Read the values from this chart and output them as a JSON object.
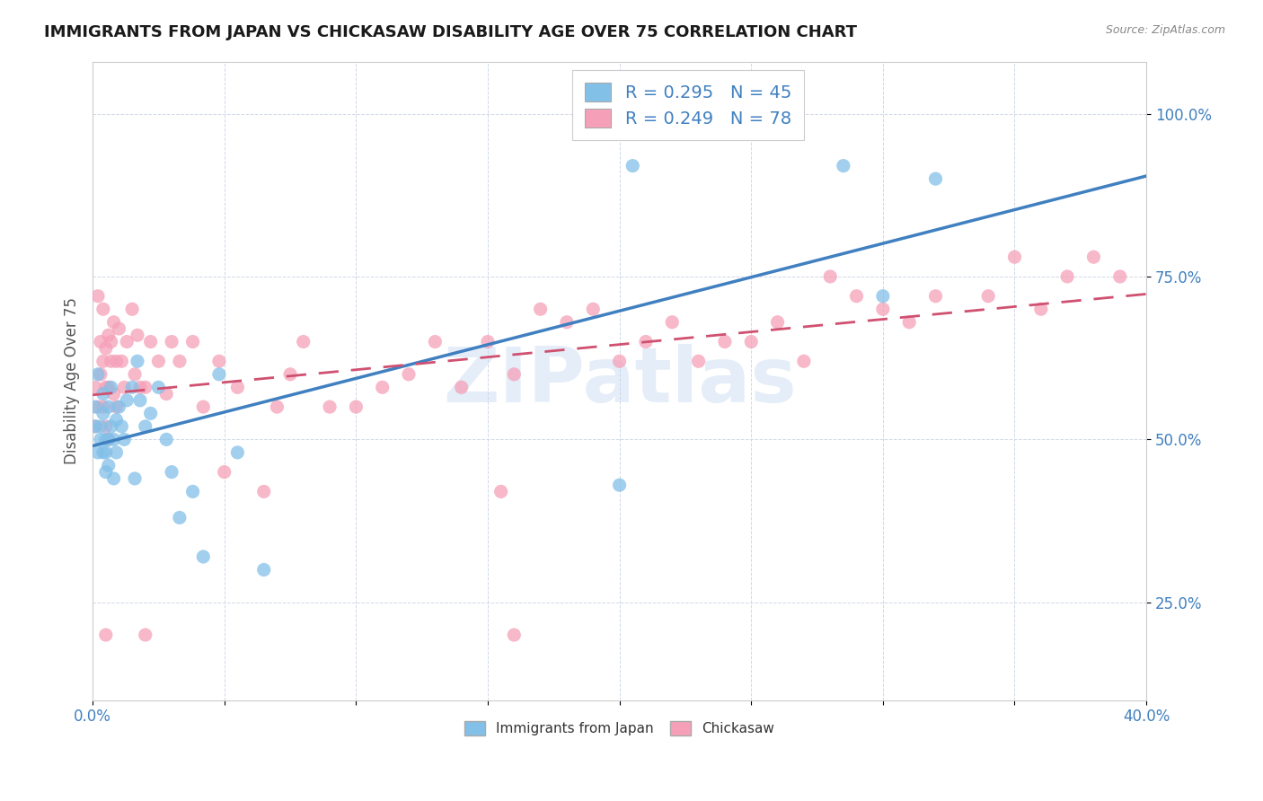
{
  "title": "IMMIGRANTS FROM JAPAN VS CHICKASAW DISABILITY AGE OVER 75 CORRELATION CHART",
  "source_text": "Source: ZipAtlas.com",
  "ylabel": "Disability Age Over 75",
  "xlim": [
    0.0,
    0.4
  ],
  "ylim": [
    0.1,
    1.08
  ],
  "xticks": [
    0.0,
    0.05,
    0.1,
    0.15,
    0.2,
    0.25,
    0.3,
    0.35,
    0.4
  ],
  "yticks": [
    0.25,
    0.5,
    0.75,
    1.0
  ],
  "xticklabels_show": [
    "0.0%",
    "40.0%"
  ],
  "yticklabels": [
    "25.0%",
    "50.0%",
    "75.0%",
    "100.0%"
  ],
  "blue_color": "#82c0e8",
  "blue_edge": "#5aa0d0",
  "pink_color": "#f5a0b8",
  "pink_edge": "#e07090",
  "trend_blue": "#4080c0",
  "trend_pink": "#d05070",
  "blue_R": 0.295,
  "blue_N": 45,
  "pink_R": 0.249,
  "pink_N": 78,
  "legend_label_blue": "Immigrants from Japan",
  "legend_label_pink": "Chickasaw",
  "watermark": "ZIPatlas",
  "blue_scatter_x": [
    0.001,
    0.001,
    0.002,
    0.002,
    0.003,
    0.003,
    0.004,
    0.004,
    0.004,
    0.005,
    0.005,
    0.005,
    0.006,
    0.006,
    0.006,
    0.007,
    0.007,
    0.008,
    0.008,
    0.009,
    0.009,
    0.01,
    0.011,
    0.012,
    0.013,
    0.015,
    0.016,
    0.017,
    0.018,
    0.02,
    0.022,
    0.025,
    0.028,
    0.03,
    0.033,
    0.038,
    0.042,
    0.048,
    0.055,
    0.065,
    0.2,
    0.205,
    0.285,
    0.3,
    0.32
  ],
  "blue_scatter_y": [
    0.52,
    0.55,
    0.48,
    0.6,
    0.52,
    0.5,
    0.48,
    0.54,
    0.57,
    0.5,
    0.48,
    0.45,
    0.55,
    0.5,
    0.46,
    0.58,
    0.52,
    0.44,
    0.5,
    0.53,
    0.48,
    0.55,
    0.52,
    0.5,
    0.56,
    0.58,
    0.44,
    0.62,
    0.56,
    0.52,
    0.54,
    0.58,
    0.5,
    0.45,
    0.38,
    0.42,
    0.32,
    0.6,
    0.48,
    0.3,
    0.43,
    0.92,
    0.92,
    0.72,
    0.9
  ],
  "pink_scatter_x": [
    0.001,
    0.001,
    0.002,
    0.002,
    0.003,
    0.003,
    0.004,
    0.004,
    0.004,
    0.005,
    0.005,
    0.005,
    0.006,
    0.006,
    0.006,
    0.007,
    0.007,
    0.008,
    0.008,
    0.009,
    0.009,
    0.01,
    0.011,
    0.012,
    0.013,
    0.015,
    0.016,
    0.017,
    0.018,
    0.02,
    0.022,
    0.025,
    0.028,
    0.03,
    0.033,
    0.038,
    0.042,
    0.048,
    0.055,
    0.065,
    0.07,
    0.075,
    0.08,
    0.09,
    0.1,
    0.11,
    0.12,
    0.13,
    0.14,
    0.15,
    0.155,
    0.16,
    0.17,
    0.18,
    0.19,
    0.2,
    0.21,
    0.22,
    0.23,
    0.24,
    0.25,
    0.26,
    0.27,
    0.28,
    0.29,
    0.3,
    0.31,
    0.32,
    0.34,
    0.35,
    0.36,
    0.37,
    0.38,
    0.39,
    0.005,
    0.02,
    0.05,
    0.16
  ],
  "pink_scatter_y": [
    0.52,
    0.58,
    0.55,
    0.72,
    0.6,
    0.65,
    0.55,
    0.62,
    0.7,
    0.58,
    0.64,
    0.52,
    0.66,
    0.58,
    0.5,
    0.65,
    0.62,
    0.68,
    0.57,
    0.62,
    0.55,
    0.67,
    0.62,
    0.58,
    0.65,
    0.7,
    0.6,
    0.66,
    0.58,
    0.58,
    0.65,
    0.62,
    0.57,
    0.65,
    0.62,
    0.65,
    0.55,
    0.62,
    0.58,
    0.42,
    0.55,
    0.6,
    0.65,
    0.55,
    0.55,
    0.58,
    0.6,
    0.65,
    0.58,
    0.65,
    0.42,
    0.6,
    0.7,
    0.68,
    0.7,
    0.62,
    0.65,
    0.68,
    0.62,
    0.65,
    0.65,
    0.68,
    0.62,
    0.75,
    0.72,
    0.7,
    0.68,
    0.72,
    0.72,
    0.78,
    0.7,
    0.75,
    0.78,
    0.75,
    0.2,
    0.2,
    0.45,
    0.2
  ]
}
